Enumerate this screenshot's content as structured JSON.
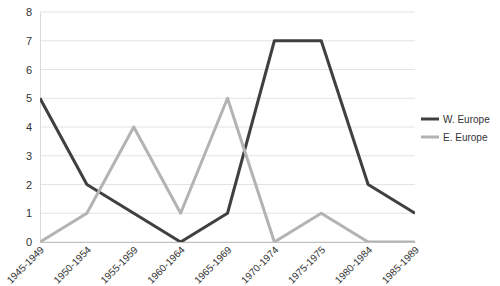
{
  "chart_data": {
    "type": "line",
    "categories": [
      "1945-1949",
      "1950-1954",
      "1955-1959",
      "1960-1964",
      "1965-1969",
      "1970-1974",
      "1975-1975",
      "1980-1984",
      "1985-1989"
    ],
    "series": [
      {
        "name": "W. Europe",
        "color": "#404040",
        "values": [
          5,
          2,
          1,
          0,
          1,
          7,
          7,
          2,
          1
        ]
      },
      {
        "name": "E. Europe",
        "color": "#b3b3b3",
        "values": [
          0,
          1,
          4,
          1,
          5,
          0,
          1,
          0,
          0
        ]
      }
    ],
    "ylim": [
      0,
      8
    ],
    "yticks": [
      0,
      1,
      2,
      3,
      4,
      5,
      6,
      7,
      8
    ],
    "grid": true,
    "legend": "right"
  }
}
